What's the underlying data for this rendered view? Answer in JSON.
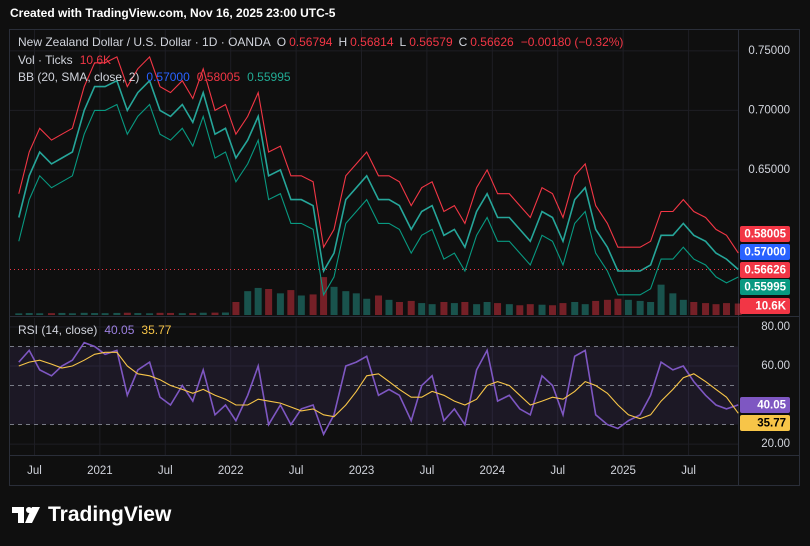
{
  "header": "Created with TradingView.com, Nov 16, 2025 23:00 UTC-5",
  "brand": "TradingView",
  "chart_data": [
    {
      "type": "line",
      "title": "New Zealand Dollar / U.S. Dollar · 1D · OANDA",
      "ohlc": [
        {
          "name": "O",
          "value": 0.56794
        },
        {
          "name": "H",
          "value": 0.56814
        },
        {
          "name": "L",
          "value": 0.56579
        },
        {
          "name": "C",
          "value": 0.56626
        }
      ],
      "change": {
        "value": -0.0018,
        "label": "−0.00180 (−0.32%)"
      },
      "volume_legend": {
        "name": "Vol · Ticks",
        "last": {
          "value": 10600,
          "label": "10.6K"
        }
      },
      "bb_legend": {
        "name": "BB (20, SMA, close, 2)",
        "values": [
          {
            "value": 0.57,
            "label": "0.57000"
          },
          0.58005,
          0.55995
        ]
      },
      "x": [
        2020.38,
        2020.46,
        2020.54,
        2020.63,
        2020.71,
        2020.79,
        2020.88,
        2020.96,
        2021.04,
        2021.13,
        2021.21,
        2021.29,
        2021.38,
        2021.46,
        2021.54,
        2021.63,
        2021.71,
        2021.79,
        2021.88,
        2021.96,
        2022.04,
        2022.13,
        2022.21,
        2022.29,
        2022.38,
        2022.46,
        2022.54,
        2022.63,
        2022.71,
        2022.79,
        2022.88,
        2022.96,
        2023.04,
        2023.13,
        2023.21,
        2023.29,
        2023.38,
        2023.46,
        2023.54,
        2023.63,
        2023.71,
        2023.79,
        2023.88,
        2023.96,
        2024.04,
        2024.13,
        2024.21,
        2024.29,
        2024.38,
        2024.46,
        2024.54,
        2024.63,
        2024.71,
        2024.79,
        2024.88,
        2024.96,
        2025.04,
        2025.13,
        2025.21,
        2025.29,
        2025.38,
        2025.46,
        2025.54,
        2025.63,
        2025.71,
        2025.79,
        2025.88
      ],
      "series": [
        {
          "color": "#26a69a",
          "values": [
            0.61,
            0.645,
            0.665,
            0.655,
            0.66,
            0.665,
            0.7,
            0.72,
            0.72,
            0.725,
            0.7,
            0.715,
            0.725,
            0.7,
            0.695,
            0.705,
            0.69,
            0.715,
            0.68,
            0.685,
            0.66,
            0.675,
            0.695,
            0.645,
            0.65,
            0.625,
            0.625,
            0.62,
            0.565,
            0.58,
            0.625,
            0.635,
            0.645,
            0.625,
            0.625,
            0.62,
            0.6,
            0.615,
            0.62,
            0.595,
            0.6,
            0.585,
            0.615,
            0.63,
            0.61,
            0.61,
            0.6,
            0.59,
            0.615,
            0.61,
            0.59,
            0.625,
            0.635,
            0.6,
            0.585,
            0.565,
            0.565,
            0.565,
            0.57,
            0.595,
            0.595,
            0.605,
            0.595,
            0.59,
            0.58,
            0.575,
            0.56626
          ]
        },
        {
          "color": "#f23645",
          "values": [
            0.63,
            0.665,
            0.685,
            0.675,
            0.68,
            0.685,
            0.72,
            0.74,
            0.74,
            0.745,
            0.72,
            0.735,
            0.745,
            0.72,
            0.715,
            0.725,
            0.71,
            0.735,
            0.7,
            0.705,
            0.68,
            0.695,
            0.715,
            0.665,
            0.67,
            0.645,
            0.645,
            0.64,
            0.585,
            0.6,
            0.645,
            0.655,
            0.665,
            0.645,
            0.645,
            0.64,
            0.62,
            0.635,
            0.64,
            0.615,
            0.62,
            0.605,
            0.635,
            0.65,
            0.63,
            0.63,
            0.62,
            0.61,
            0.635,
            0.63,
            0.61,
            0.645,
            0.655,
            0.62,
            0.605,
            0.585,
            0.585,
            0.585,
            0.59,
            0.615,
            0.615,
            0.625,
            0.615,
            0.61,
            0.6,
            0.595,
            0.58005
          ]
        },
        {
          "color": "#089981",
          "values": [
            0.59,
            0.625,
            0.645,
            0.635,
            0.64,
            0.645,
            0.68,
            0.7,
            0.7,
            0.705,
            0.68,
            0.695,
            0.705,
            0.68,
            0.675,
            0.685,
            0.67,
            0.695,
            0.66,
            0.665,
            0.64,
            0.655,
            0.675,
            0.625,
            0.63,
            0.605,
            0.605,
            0.6,
            0.545,
            0.56,
            0.605,
            0.615,
            0.625,
            0.605,
            0.605,
            0.6,
            0.58,
            0.595,
            0.6,
            0.575,
            0.58,
            0.565,
            0.595,
            0.61,
            0.59,
            0.59,
            0.58,
            0.57,
            0.595,
            0.59,
            0.57,
            0.605,
            0.615,
            0.58,
            0.565,
            0.545,
            0.545,
            0.545,
            0.55,
            0.575,
            0.575,
            0.585,
            0.575,
            0.57,
            0.56,
            0.555,
            0.55995
          ]
        }
      ],
      "volume": {
        "up_color": "#26a69a",
        "down_color": "#f23645",
        "values": [
          1500,
          1800,
          1600,
          1700,
          1900,
          1600,
          2000,
          1800,
          1700,
          1900,
          2100,
          1800,
          1600,
          2000,
          1900,
          1700,
          1800,
          2100,
          2200,
          2300,
          12000,
          22000,
          25000,
          24000,
          20000,
          23000,
          18000,
          19000,
          35000,
          26000,
          22000,
          20000,
          15000,
          18000,
          14000,
          12000,
          13000,
          11000,
          10000,
          12000,
          11000,
          12000,
          10000,
          12000,
          11000,
          10000,
          9000,
          10000,
          9500,
          9000,
          11000,
          12000,
          10000,
          13000,
          14000,
          15000,
          14000,
          13000,
          12000,
          28000,
          20000,
          14000,
          12000,
          11000,
          10000,
          11000,
          10600
        ]
      },
      "vlim": [
        0,
        60000
      ],
      "xlim": [
        2020.313,
        2025.878
      ],
      "xticks": [
        {
          "value": 2020.5,
          "label": "Jul"
        },
        2021,
        {
          "value": 2021.5,
          "label": "Jul"
        },
        2022,
        {
          "value": 2022.5,
          "label": "Jul"
        },
        2023,
        {
          "value": 2023.5,
          "label": "Jul"
        },
        2024,
        {
          "value": 2024.5,
          "label": "Jul"
        },
        2025,
        {
          "value": 2025.5,
          "label": "Jul"
        }
      ],
      "ylim": [
        0.528,
        0.7676
      ],
      "yticks": [
        {
          "value": 0.75,
          "label": "0.75000"
        },
        {
          "value": 0.7,
          "label": "0.70000"
        },
        {
          "value": 0.65,
          "label": "0.65000"
        }
      ],
      "grid": true
    },
    {
      "type": "line",
      "title": "RSI (14, close)",
      "series": [
        {
          "color": "#7e57c2",
          "values": [
            62,
            68,
            58,
            55,
            60,
            63,
            72,
            70,
            66,
            68,
            45,
            58,
            62,
            44,
            40,
            50,
            42,
            58,
            35,
            40,
            32,
            45,
            60,
            30,
            40,
            30,
            38,
            40,
            25,
            35,
            60,
            62,
            65,
            45,
            48,
            45,
            32,
            50,
            55,
            32,
            38,
            30,
            58,
            68,
            42,
            45,
            38,
            35,
            55,
            50,
            35,
            65,
            68,
            35,
            30,
            28,
            32,
            35,
            45,
            62,
            58,
            60,
            52,
            45,
            40,
            38,
            40.05
          ]
        },
        {
          "color": "#f7c548",
          "values": [
            60,
            62,
            63,
            61,
            59,
            60,
            63,
            66,
            67,
            67,
            60,
            56,
            55,
            53,
            50,
            48,
            46,
            48,
            45,
            43,
            40,
            40,
            43,
            42,
            41,
            39,
            37,
            38,
            35,
            34,
            40,
            47,
            55,
            56,
            52,
            48,
            44,
            44,
            47,
            45,
            42,
            40,
            43,
            50,
            52,
            50,
            45,
            40,
            42,
            44,
            43,
            47,
            52,
            50,
            46,
            40,
            35,
            33,
            35,
            42,
            48,
            54,
            56,
            52,
            48,
            44,
            35.77
          ]
        }
      ],
      "levels": [
        70,
        50,
        30
      ],
      "ylim": [
        14.4,
        84.6
      ],
      "yticks": [
        {
          "value": 80,
          "label": "80.00"
        },
        {
          "value": 60,
          "label": "60.00"
        },
        {
          "value": 20,
          "label": "20.00"
        }
      ],
      "grid": true
    }
  ]
}
